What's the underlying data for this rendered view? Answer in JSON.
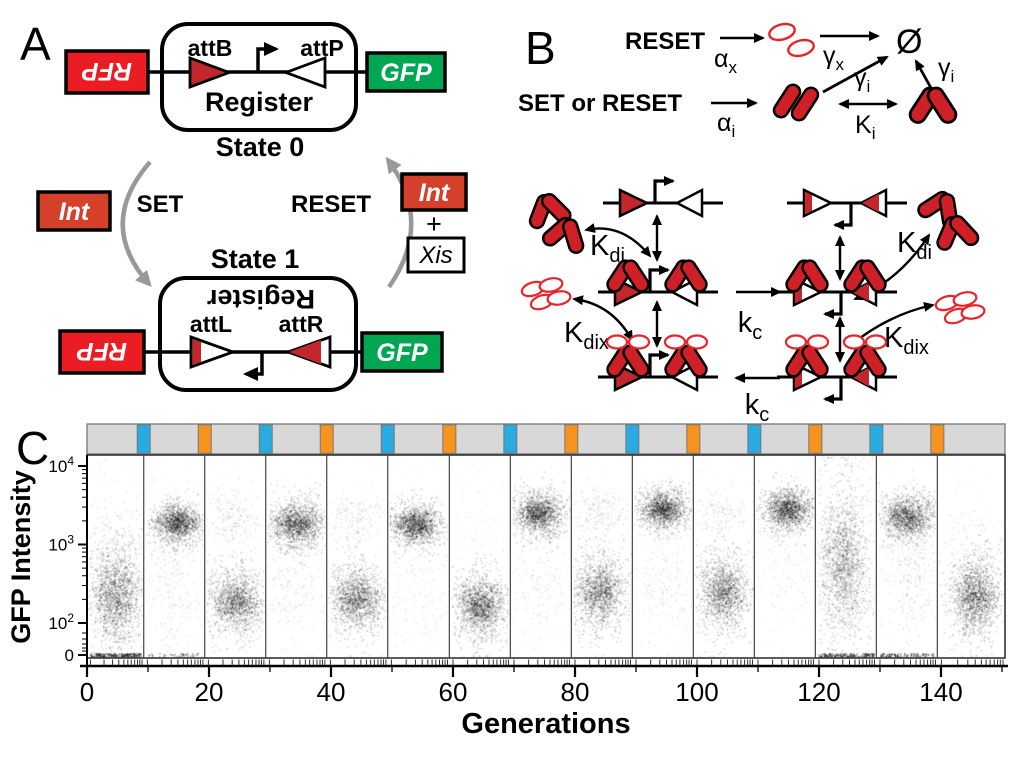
{
  "panel_a": {
    "label": "A",
    "rfp": "RFP",
    "gfp": "GFP",
    "register": "Register",
    "state0": "State 0",
    "state1": "State 1",
    "attB": "attB",
    "attP": "attP",
    "attL": "attL",
    "attR": "attR",
    "set": "SET",
    "reset": "RESET",
    "int": "Int",
    "plus": "+",
    "xis": "Xis"
  },
  "panel_b": {
    "label": "B",
    "reset": "RESET",
    "set_or_reset": "SET or RESET",
    "empty_set": "Ø",
    "rates": {
      "alpha_x": {
        "base": "α",
        "sub": "x"
      },
      "gamma_x": {
        "base": "γ",
        "sub": "x"
      },
      "gamma_i": {
        "base": "γ",
        "sub": "i"
      },
      "alpha_i": {
        "base": "α",
        "sub": "i"
      },
      "K_i": {
        "base": "K",
        "sub": "i"
      },
      "K_di": {
        "base": "K",
        "sub": "di"
      },
      "K_dix": {
        "base": "K",
        "sub": "dix"
      },
      "k_c": {
        "base": "k",
        "sub": "c"
      }
    }
  },
  "panel_c": {
    "label": "C",
    "ylabel": "GFP Intensity",
    "xlabel": "Generations"
  },
  "colors": {
    "rfp_red": "#EC1C24",
    "gfp_green": "#00A651",
    "int_red": "#D5402B",
    "att_red": "#C1272D",
    "protein_red": "#CE2026",
    "xis_red": "#E8242B",
    "cycle_gray": "#999999",
    "strip_gray": "#D8D8D8",
    "marker_blue": "#29ABE2",
    "marker_orange": "#F7941D"
  },
  "chart_data": {
    "type": "scatter",
    "description": "Flow-cytometry GFP intensity time course of a rewritable recombinase register; 15 concatenated growth segments separated by alternating blue/orange induction pulses shown in the top strip.",
    "xlabel": "Generations",
    "ylabel": "GFP Intensity",
    "x_ticks": [
      0,
      20,
      40,
      60,
      80,
      100,
      120,
      140
    ],
    "y_ticks": [
      {
        "base": "10",
        "exp": "4"
      },
      {
        "base": "10",
        "exp": "3"
      },
      {
        "base": "10",
        "exp": "2"
      },
      {
        "base": "0"
      }
    ],
    "y_scale": "log10 decades 100-10000 with compressed zero region",
    "x_range_generations": [
      0,
      150.5
    ],
    "segment_boundaries_generations": [
      0,
      9.3,
      19.3,
      29.3,
      39.3,
      49.3,
      59.4,
      69.4,
      79.4,
      89.4,
      99.4,
      109.4,
      119.4,
      129.4,
      139.4,
      150.5
    ],
    "pulse_markers": [
      {
        "generation": 9.3,
        "color": "blue"
      },
      {
        "generation": 19.3,
        "color": "orange"
      },
      {
        "generation": 29.3,
        "color": "blue"
      },
      {
        "generation": 39.3,
        "color": "orange"
      },
      {
        "generation": 49.3,
        "color": "blue"
      },
      {
        "generation": 59.4,
        "color": "orange"
      },
      {
        "generation": 69.4,
        "color": "blue"
      },
      {
        "generation": 79.4,
        "color": "orange"
      },
      {
        "generation": 89.4,
        "color": "blue"
      },
      {
        "generation": 99.4,
        "color": "orange"
      },
      {
        "generation": 109.4,
        "color": "blue"
      },
      {
        "generation": 119.4,
        "color": "orange"
      },
      {
        "generation": 129.4,
        "color": "blue"
      },
      {
        "generation": 139.4,
        "color": "orange"
      }
    ],
    "cluster_key": "m = log10 mean GFP, s = log10 sd, n = events, xc/xs = horizontal center/sd as fraction of segment width, a = dot alpha",
    "segments": [
      {
        "gfp_state": "low-broad",
        "baseline_n": 200,
        "clusters": [
          {
            "m": 2.35,
            "s": 0.38,
            "n": 900,
            "xc": 0.5,
            "xs": 0.27,
            "a": 0.2
          },
          {
            "m": 2.95,
            "s": 0.3,
            "n": 150,
            "xc": 0.5,
            "xs": 0.3,
            "a": 0.13
          }
        ]
      },
      {
        "gfp_state": "high",
        "baseline_n": 40,
        "clusters": [
          {
            "m": 3.28,
            "s": 0.15,
            "n": 850,
            "xc": 0.55,
            "xs": 0.22,
            "a": 0.2
          },
          {
            "m": 2.6,
            "s": 0.5,
            "n": 240,
            "xc": 0.45,
            "xs": 0.22,
            "a": 0.12
          }
        ]
      },
      {
        "gfp_state": "low",
        "baseline_n": 0,
        "clusters": [
          {
            "m": 2.28,
            "s": 0.23,
            "n": 800,
            "xc": 0.5,
            "xs": 0.25,
            "a": 0.2
          },
          {
            "m": 3.3,
            "s": 0.18,
            "n": 170,
            "xc": 0.45,
            "xs": 0.25,
            "a": 0.12
          }
        ]
      },
      {
        "gfp_state": "high",
        "baseline_n": 0,
        "clusters": [
          {
            "m": 3.27,
            "s": 0.17,
            "n": 850,
            "xc": 0.5,
            "xs": 0.24,
            "a": 0.2
          },
          {
            "m": 2.6,
            "s": 0.42,
            "n": 180,
            "xc": 0.5,
            "xs": 0.27,
            "a": 0.12
          }
        ]
      },
      {
        "gfp_state": "low",
        "baseline_n": 0,
        "clusters": [
          {
            "m": 2.32,
            "s": 0.25,
            "n": 800,
            "xc": 0.5,
            "xs": 0.25,
            "a": 0.2
          },
          {
            "m": 3.33,
            "s": 0.17,
            "n": 150,
            "xc": 0.45,
            "xs": 0.25,
            "a": 0.12
          }
        ]
      },
      {
        "gfp_state": "high",
        "baseline_n": 0,
        "clusters": [
          {
            "m": 3.26,
            "s": 0.15,
            "n": 850,
            "xc": 0.45,
            "xs": 0.22,
            "a": 0.2
          },
          {
            "m": 2.5,
            "s": 0.4,
            "n": 110,
            "xc": 0.5,
            "xs": 0.3,
            "a": 0.1
          }
        ]
      },
      {
        "gfp_state": "low",
        "baseline_n": 0,
        "clusters": [
          {
            "m": 2.22,
            "s": 0.24,
            "n": 900,
            "xc": 0.5,
            "xs": 0.23,
            "a": 0.2
          },
          {
            "m": 3.2,
            "s": 0.3,
            "n": 50,
            "xc": 0.5,
            "xs": 0.3,
            "a": 0.08
          }
        ]
      },
      {
        "gfp_state": "high",
        "baseline_n": 0,
        "clusters": [
          {
            "m": 3.4,
            "s": 0.16,
            "n": 850,
            "xc": 0.45,
            "xs": 0.22,
            "a": 0.2
          },
          {
            "m": 2.4,
            "s": 0.35,
            "n": 140,
            "xc": 0.5,
            "xs": 0.27,
            "a": 0.1
          }
        ]
      },
      {
        "gfp_state": "low",
        "baseline_n": 0,
        "clusters": [
          {
            "m": 2.4,
            "s": 0.28,
            "n": 800,
            "xc": 0.45,
            "xs": 0.24,
            "a": 0.2
          },
          {
            "m": 3.42,
            "s": 0.15,
            "n": 160,
            "xc": 0.45,
            "xs": 0.22,
            "a": 0.12
          }
        ]
      },
      {
        "gfp_state": "high",
        "baseline_n": 0,
        "clusters": [
          {
            "m": 3.45,
            "s": 0.15,
            "n": 850,
            "xc": 0.5,
            "xs": 0.22,
            "a": 0.2
          },
          {
            "m": 2.45,
            "s": 0.32,
            "n": 160,
            "xc": 0.5,
            "xs": 0.25,
            "a": 0.11
          }
        ]
      },
      {
        "gfp_state": "low",
        "baseline_n": 0,
        "clusters": [
          {
            "m": 2.4,
            "s": 0.3,
            "n": 800,
            "xc": 0.5,
            "xs": 0.24,
            "a": 0.2
          },
          {
            "m": 3.42,
            "s": 0.15,
            "n": 130,
            "xc": 0.45,
            "xs": 0.25,
            "a": 0.11
          }
        ]
      },
      {
        "gfp_state": "high",
        "baseline_n": 0,
        "clusters": [
          {
            "m": 3.45,
            "s": 0.16,
            "n": 850,
            "xc": 0.55,
            "xs": 0.22,
            "a": 0.2
          },
          {
            "m": 2.8,
            "s": 0.45,
            "n": 120,
            "xc": 0.5,
            "xs": 0.27,
            "a": 0.1
          }
        ]
      },
      {
        "gfp_state": "transition-broad",
        "baseline_n": 170,
        "clusters": [
          {
            "m": 2.85,
            "s": 0.55,
            "n": 850,
            "xc": 0.45,
            "xs": 0.23,
            "a": 0.18
          },
          {
            "m": 2.3,
            "s": 0.3,
            "n": 280,
            "xc": 0.5,
            "xs": 0.25,
            "a": 0.16
          }
        ]
      },
      {
        "gfp_state": "high",
        "baseline_n": 110,
        "clusters": [
          {
            "m": 3.36,
            "s": 0.17,
            "n": 800,
            "xc": 0.5,
            "xs": 0.24,
            "a": 0.2
          },
          {
            "m": 2.7,
            "s": 0.45,
            "n": 240,
            "xc": 0.55,
            "xs": 0.2,
            "a": 0.13
          }
        ]
      },
      {
        "gfp_state": "low",
        "baseline_n": 0,
        "clusters": [
          {
            "m": 2.35,
            "s": 0.3,
            "n": 900,
            "xc": 0.55,
            "xs": 0.2,
            "a": 0.2
          },
          {
            "m": 2.95,
            "s": 0.3,
            "n": 110,
            "xc": 0.5,
            "xs": 0.28,
            "a": 0.1
          }
        ]
      }
    ]
  }
}
